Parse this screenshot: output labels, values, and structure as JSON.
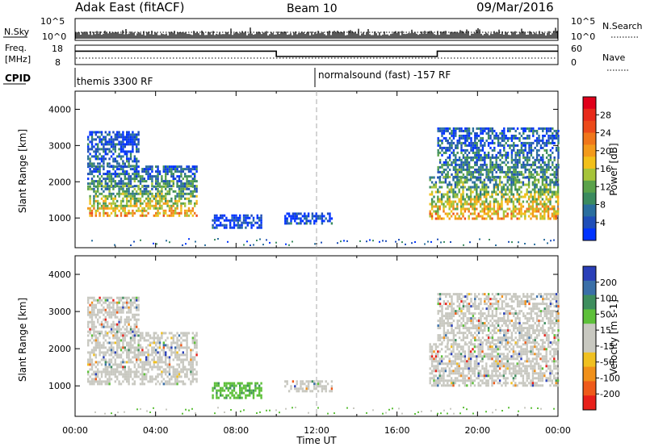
{
  "header": {
    "station": "Adak East (fitACF)",
    "beam": "Beam 10",
    "date": "09/Mar/2016"
  },
  "sky_panel": {
    "left_label": "N.Sky",
    "right_label": "N.Search",
    "left_ticks": [
      "10^5",
      "10^0"
    ],
    "right_ticks": [
      "10^5",
      "10^0"
    ]
  },
  "freq_panel": {
    "left_label_1": "Freq.",
    "left_label_2": "[MHz]",
    "right_label": "Nave",
    "left_ticks": [
      "18",
      "8"
    ],
    "right_ticks": [
      "60",
      "0"
    ],
    "freq_steps": [
      {
        "t0": 0,
        "t1": 10,
        "v": 0.78
      },
      {
        "t0": 10,
        "t1": 18,
        "v": 0.45
      },
      {
        "t0": 18,
        "t1": 24,
        "v": 0.78
      }
    ]
  },
  "cpid_panel": {
    "label": "CPID",
    "segments": [
      {
        "start": "00:00",
        "text": "themis 3300 RF"
      },
      {
        "start": "12:00",
        "text": "normalsound (fast) -157 RF"
      }
    ]
  },
  "chart_data": [
    {
      "type": "heatmap",
      "name": "power",
      "ylabel": "Slant Range [km]",
      "ylim": [
        180,
        4500
      ],
      "yticks": [
        "1000",
        "2000",
        "3000",
        "4000"
      ],
      "colorbar_label": "Power [dB]",
      "colorbar_ticks": [
        "4",
        "8",
        "12",
        "16",
        "20",
        "24",
        "28"
      ],
      "colorbar_colors": [
        "#0033ff",
        "#1f4eb8",
        "#2a6e9e",
        "#3b8b5f",
        "#5aa24a",
        "#a6c43a",
        "#f2c01a",
        "#f39a1b",
        "#f0761a",
        "#ec4a1a",
        "#e82a1a",
        "#e0001a"
      ],
      "regions": [
        {
          "t0": 0.6,
          "t1": 6.0,
          "r0": 1050,
          "r1": 1900,
          "level": 0.65
        },
        {
          "t0": 0.6,
          "t1": 6.0,
          "r0": 1900,
          "r1": 2450,
          "level": 0.3
        },
        {
          "t0": 0.6,
          "t1": 3.2,
          "r0": 2450,
          "r1": 3400,
          "level": 0.2
        },
        {
          "t0": 6.8,
          "t1": 9.3,
          "r0": 700,
          "r1": 1100,
          "level": 0.1
        },
        {
          "t0": 10.4,
          "t1": 12.8,
          "r0": 880,
          "r1": 1150,
          "level": 0.12
        },
        {
          "t0": 17.6,
          "t1": 24.0,
          "r0": 1000,
          "r1": 2150,
          "level": 0.65
        },
        {
          "t0": 18.0,
          "t1": 24.0,
          "r0": 2150,
          "r1": 3500,
          "level": 0.28
        }
      ]
    },
    {
      "type": "heatmap",
      "name": "velocity",
      "xlabel": "Time UT",
      "ylabel": "Slant Range [km]",
      "ylim": [
        180,
        4500
      ],
      "yticks": [
        "1000",
        "2000",
        "3000",
        "4000"
      ],
      "xticks": [
        "00:00",
        "04:00",
        "08:00",
        "12:00",
        "16:00",
        "20:00",
        "00:00"
      ],
      "colorbar_label": "Velocity [m s-1]",
      "colorbar_ticks": [
        "200",
        "100",
        "50",
        "15",
        "-15",
        "-50",
        "-100",
        "-200"
      ],
      "colorbar_colors": [
        "#2a3fb8",
        "#3a6fa8",
        "#3e8e5e",
        "#5ec03a",
        "#c8c8c0",
        "#c8c8c0",
        "#f0c020",
        "#f0901a",
        "#ef5a1a",
        "#e8201a"
      ],
      "regions": [
        {
          "t0": 0.6,
          "t1": 6.0,
          "r0": 1050,
          "r1": 2450,
          "level": 0.5
        },
        {
          "t0": 0.6,
          "t1": 3.2,
          "r0": 2450,
          "r1": 3400,
          "level": 0.5
        },
        {
          "t0": 6.8,
          "t1": 9.3,
          "r0": 700,
          "r1": 1100,
          "level": 0.35
        },
        {
          "t0": 10.4,
          "t1": 12.8,
          "r0": 880,
          "r1": 1150,
          "level": 0.5
        },
        {
          "t0": 17.6,
          "t1": 24.0,
          "r0": 1000,
          "r1": 2150,
          "level": 0.5
        },
        {
          "t0": 18.0,
          "t1": 24.0,
          "r0": 2150,
          "r1": 3500,
          "level": 0.5
        }
      ]
    }
  ]
}
